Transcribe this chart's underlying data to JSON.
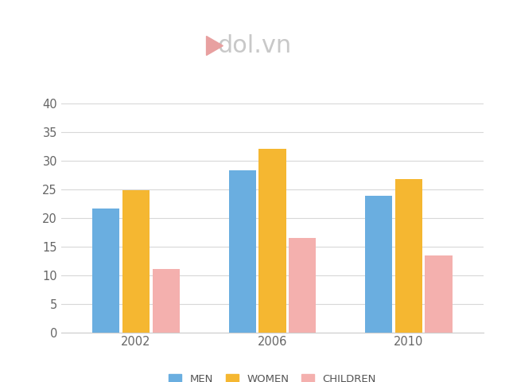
{
  "categories": [
    "2002",
    "2006",
    "2010"
  ],
  "series": {
    "MEN": [
      21.6,
      28.3,
      23.8
    ],
    "WOMEN": [
      24.8,
      32.0,
      26.8
    ],
    "CHILDREN": [
      11.0,
      16.5,
      13.4
    ]
  },
  "colors": {
    "MEN": "#6aaee0",
    "WOMEN": "#f5b731",
    "CHILDREN": "#f4b0ae"
  },
  "ylim": [
    0,
    40
  ],
  "yticks": [
    0,
    5,
    10,
    15,
    20,
    25,
    30,
    35,
    40
  ],
  "bar_width": 0.2,
  "background_color": "#ffffff",
  "grid_color": "#d8d8d8",
  "tick_label_fontsize": 10.5,
  "legend_fontsize": 9.5,
  "legend_labels": [
    "MEN",
    "WOMEN",
    "CHILDREN"
  ],
  "logo_text": "dol.vn",
  "logo_color": "#c8c8c8",
  "logo_fontsize": 22,
  "logo_leaf_color": "#e8a0a0"
}
